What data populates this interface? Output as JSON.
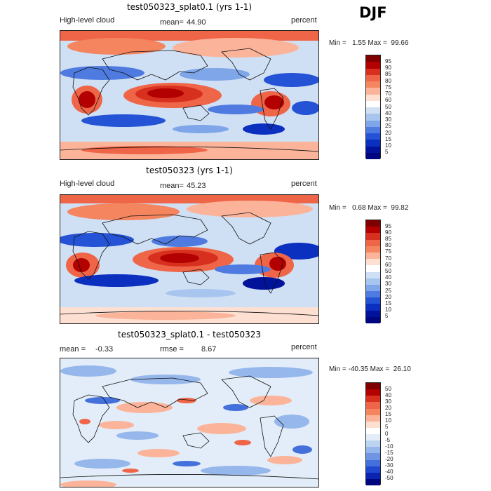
{
  "season": "DJF",
  "panels": [
    {
      "title": "test050323_splat0.1 (yrs 1-1)",
      "variable": "High-level cloud",
      "stat1_label": "mean=",
      "stat1_value": "44.90",
      "units": "percent",
      "min_label": "Min =",
      "min_value": "1.55",
      "max_label": "Max =",
      "max_value": "99.66",
      "levels": [
        "95",
        "90",
        "85",
        "80",
        "75",
        "70",
        "60",
        "50",
        "40",
        "30",
        "25",
        "20",
        "15",
        "10",
        "5"
      ]
    },
    {
      "title": "test050323 (yrs 1-1)",
      "variable": "High-level cloud",
      "stat1_label": "mean=",
      "stat1_value": "45.23",
      "units": "percent",
      "min_label": "Min =",
      "min_value": "0.68",
      "max_label": "Max =",
      "max_value": "99.82",
      "levels": [
        "95",
        "90",
        "85",
        "80",
        "75",
        "70",
        "60",
        "50",
        "40",
        "30",
        "25",
        "20",
        "15",
        "10",
        "5"
      ]
    },
    {
      "title": "test050323_splat0.1 - test050323",
      "stat1_label": "mean =",
      "stat1_value": "-0.33",
      "stat2_label": "rmse =",
      "stat2_value": "8.67",
      "units": "percent",
      "min_label": "Min =",
      "min_value": "-40.35",
      "max_label": "Max =",
      "max_value": "26.10",
      "levels": [
        "50",
        "40",
        "30",
        "20",
        "15",
        "10",
        "5",
        "0",
        "-5",
        "-10",
        "-15",
        "-20",
        "-30",
        "-40",
        "-50"
      ]
    }
  ],
  "colors": {
    "abs_scale": [
      "#7f0000",
      "#b30000",
      "#d7301f",
      "#ef6548",
      "#f4855f",
      "#fbb49a",
      "#fde0d2",
      "#ffffff",
      "#cfe0f5",
      "#a7c5ee",
      "#7ea6e8",
      "#4f7be0",
      "#2553d6",
      "#0b2fbf",
      "#00139a",
      "#000680"
    ],
    "diff_scale": [
      "#7f0000",
      "#b30000",
      "#d7301f",
      "#ef6548",
      "#f4855f",
      "#fbb49a",
      "#fde0d2",
      "#ffffff",
      "#e3edf9",
      "#bdd3f2",
      "#96b7ec",
      "#6e94e3",
      "#4470db",
      "#1f48cf",
      "#0a23b0",
      "#000680"
    ],
    "coast": "#111111"
  }
}
